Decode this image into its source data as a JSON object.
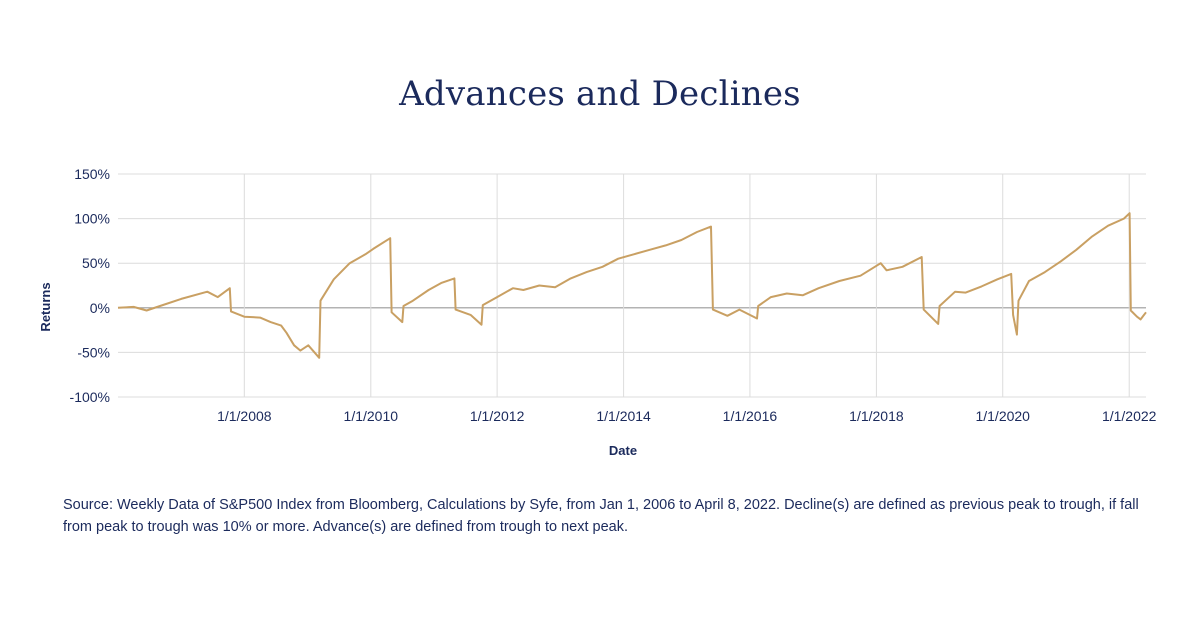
{
  "chart_data": {
    "type": "line",
    "title": "Advances and Declines",
    "xlabel": "Date",
    "ylabel": "Returns",
    "ylim": [
      -100,
      150
    ],
    "y_ticks": [
      150,
      100,
      50,
      0,
      -50,
      -100
    ],
    "y_tick_labels": [
      "150%",
      "100%",
      "50%",
      "0%",
      "-50%",
      "-100%"
    ],
    "x_range": [
      "2006-01-01",
      "2022-04-08"
    ],
    "x_ticks": [
      "2008-01-01",
      "2010-01-01",
      "2012-01-01",
      "2014-01-01",
      "2016-01-01",
      "2018-01-01",
      "2020-01-01",
      "2022-01-01"
    ],
    "x_tick_labels": [
      "1/1/2008",
      "1/1/2010",
      "1/1/2012",
      "1/1/2014",
      "1/1/2016",
      "1/1/2018",
      "1/1/2020",
      "1/1/2022"
    ],
    "grid": "vertical at x ticks, horizontal at y ticks",
    "line_color": "#c9a063",
    "series": [
      {
        "name": "",
        "points": [
          [
            "2006-01-01",
            0
          ],
          [
            "2006-04-01",
            1
          ],
          [
            "2006-06-15",
            -3
          ],
          [
            "2006-09-01",
            2
          ],
          [
            "2007-01-01",
            10
          ],
          [
            "2007-06-01",
            18
          ],
          [
            "2007-08-01",
            12
          ],
          [
            "2007-10-09",
            22
          ],
          [
            "2007-10-16",
            -4
          ],
          [
            "2008-01-01",
            -10
          ],
          [
            "2008-04-01",
            -11
          ],
          [
            "2008-06-01",
            -16
          ],
          [
            "2008-08-01",
            -20
          ],
          [
            "2008-09-01",
            -28
          ],
          [
            "2008-10-15",
            -42
          ],
          [
            "2008-11-20",
            -48
          ],
          [
            "2009-01-05",
            -42
          ],
          [
            "2009-03-09",
            -56
          ],
          [
            "2009-03-16",
            8
          ],
          [
            "2009-06-01",
            32
          ],
          [
            "2009-09-01",
            50
          ],
          [
            "2009-12-01",
            60
          ],
          [
            "2010-01-15",
            66
          ],
          [
            "2010-04-23",
            78
          ],
          [
            "2010-05-01",
            -5
          ],
          [
            "2010-07-02",
            -16
          ],
          [
            "2010-07-09",
            2
          ],
          [
            "2010-09-01",
            8
          ],
          [
            "2010-12-01",
            20
          ],
          [
            "2011-02-15",
            28
          ],
          [
            "2011-04-29",
            33
          ],
          [
            "2011-05-06",
            -2
          ],
          [
            "2011-08-01",
            -8
          ],
          [
            "2011-10-03",
            -19
          ],
          [
            "2011-10-10",
            3
          ],
          [
            "2012-01-01",
            12
          ],
          [
            "2012-04-01",
            22
          ],
          [
            "2012-06-01",
            20
          ],
          [
            "2012-09-01",
            25
          ],
          [
            "2012-12-01",
            23
          ],
          [
            "2013-03-01",
            33
          ],
          [
            "2013-06-01",
            40
          ],
          [
            "2013-09-01",
            46
          ],
          [
            "2013-12-01",
            55
          ],
          [
            "2014-03-01",
            60
          ],
          [
            "2014-06-01",
            65
          ],
          [
            "2014-09-01",
            70
          ],
          [
            "2014-12-01",
            76
          ],
          [
            "2015-03-01",
            85
          ],
          [
            "2015-05-21",
            91
          ],
          [
            "2015-06-01",
            -2
          ],
          [
            "2015-08-24",
            -9
          ],
          [
            "2015-11-01",
            -2
          ],
          [
            "2016-02-11",
            -12
          ],
          [
            "2016-02-18",
            2
          ],
          [
            "2016-05-01",
            12
          ],
          [
            "2016-08-01",
            16
          ],
          [
            "2016-11-01",
            14
          ],
          [
            "2017-02-01",
            22
          ],
          [
            "2017-06-01",
            30
          ],
          [
            "2017-10-01",
            36
          ],
          [
            "2018-01-26",
            50
          ],
          [
            "2018-03-01",
            42
          ],
          [
            "2018-06-01",
            46
          ],
          [
            "2018-09-20",
            57
          ],
          [
            "2018-10-01",
            -2
          ],
          [
            "2018-12-24",
            -18
          ],
          [
            "2019-01-01",
            2
          ],
          [
            "2019-04-01",
            18
          ],
          [
            "2019-06-01",
            17
          ],
          [
            "2019-09-01",
            24
          ],
          [
            "2019-12-01",
            32
          ],
          [
            "2020-02-19",
            38
          ],
          [
            "2020-03-01",
            -8
          ],
          [
            "2020-03-23",
            -30
          ],
          [
            "2020-04-01",
            8
          ],
          [
            "2020-06-01",
            30
          ],
          [
            "2020-09-01",
            40
          ],
          [
            "2020-12-01",
            52
          ],
          [
            "2021-03-01",
            65
          ],
          [
            "2021-06-01",
            80
          ],
          [
            "2021-09-01",
            92
          ],
          [
            "2021-12-01",
            100
          ],
          [
            "2022-01-03",
            106
          ],
          [
            "2022-01-10",
            -3
          ],
          [
            "2022-02-15",
            -10
          ],
          [
            "2022-03-08",
            -13
          ],
          [
            "2022-04-08",
            -5
          ]
        ]
      }
    ]
  },
  "source_note": "Source: Weekly Data of S&P500 Index from Bloomberg, Calculations by Syfe, from Jan 1, 2006 to April 8, 2022. Decline(s) are defined as previous peak to trough, if fall from peak to trough was 10% or more. Advance(s) are defined from trough to next peak."
}
